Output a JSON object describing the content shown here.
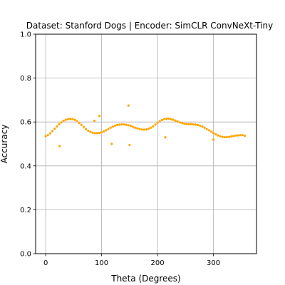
{
  "chart_data": {
    "type": "scatter",
    "title": "Dataset: Stanford Dogs | Encoder: SimCLR ConvNeXt-Tiny",
    "xlabel": "Theta (Degrees)",
    "ylabel": "Accuracy",
    "xlim": [
      -18,
      377
    ],
    "ylim": [
      0.0,
      1.0
    ],
    "xticks": [
      0,
      100,
      200,
      300
    ],
    "xtick_labels": [
      "0",
      "100",
      "200",
      "300"
    ],
    "yticks": [
      0.0,
      0.2,
      0.4,
      0.6,
      0.8,
      1.0
    ],
    "ytick_labels": [
      "0.0",
      "0.2",
      "0.4",
      "0.6",
      "0.8",
      "1.0"
    ],
    "grid": true,
    "marker_color": "#FFA500",
    "series": [
      {
        "x": [
          0,
          4,
          8,
          12,
          16,
          20,
          24,
          28,
          32,
          36,
          40,
          44,
          48,
          52,
          56,
          60,
          64,
          68,
          72,
          76,
          80,
          84,
          88,
          92,
          96,
          100,
          104,
          108,
          112,
          116,
          120,
          124,
          128,
          132,
          136,
          140,
          144,
          148,
          152,
          156,
          160,
          164,
          168,
          172,
          176,
          180,
          184,
          188,
          192,
          196,
          200,
          204,
          208,
          212,
          216,
          220,
          224,
          228,
          232,
          236,
          240,
          244,
          248,
          252,
          256,
          260,
          264,
          268,
          272,
          276,
          280,
          284,
          288,
          292,
          296,
          300,
          304,
          308,
          312,
          316,
          320,
          324,
          328,
          332,
          336,
          340,
          344,
          348,
          352,
          356,
          25,
          87,
          96,
          118,
          148,
          150,
          214,
          300
        ],
        "y": [
          0.535,
          0.54,
          0.548,
          0.558,
          0.569,
          0.58,
          0.59,
          0.598,
          0.605,
          0.61,
          0.613,
          0.614,
          0.613,
          0.61,
          0.604,
          0.596,
          0.587,
          0.577,
          0.567,
          0.56,
          0.555,
          0.551,
          0.549,
          0.549,
          0.55,
          0.553,
          0.557,
          0.562,
          0.568,
          0.574,
          0.579,
          0.583,
          0.586,
          0.588,
          0.589,
          0.589,
          0.587,
          0.585,
          0.582,
          0.578,
          0.574,
          0.571,
          0.568,
          0.566,
          0.565,
          0.566,
          0.569,
          0.574,
          0.58,
          0.588,
          0.596,
          0.603,
          0.609,
          0.613,
          0.615,
          0.615,
          0.613,
          0.61,
          0.606,
          0.602,
          0.598,
          0.595,
          0.592,
          0.591,
          0.59,
          0.59,
          0.589,
          0.588,
          0.586,
          0.583,
          0.579,
          0.574,
          0.568,
          0.562,
          0.556,
          0.55,
          0.544,
          0.539,
          0.535,
          0.532,
          0.531,
          0.531,
          0.532,
          0.534,
          0.536,
          0.538,
          0.539,
          0.54,
          0.54,
          0.537,
          0.49,
          0.605,
          0.628,
          0.5,
          0.675,
          0.495,
          0.53,
          0.52
        ]
      }
    ]
  }
}
